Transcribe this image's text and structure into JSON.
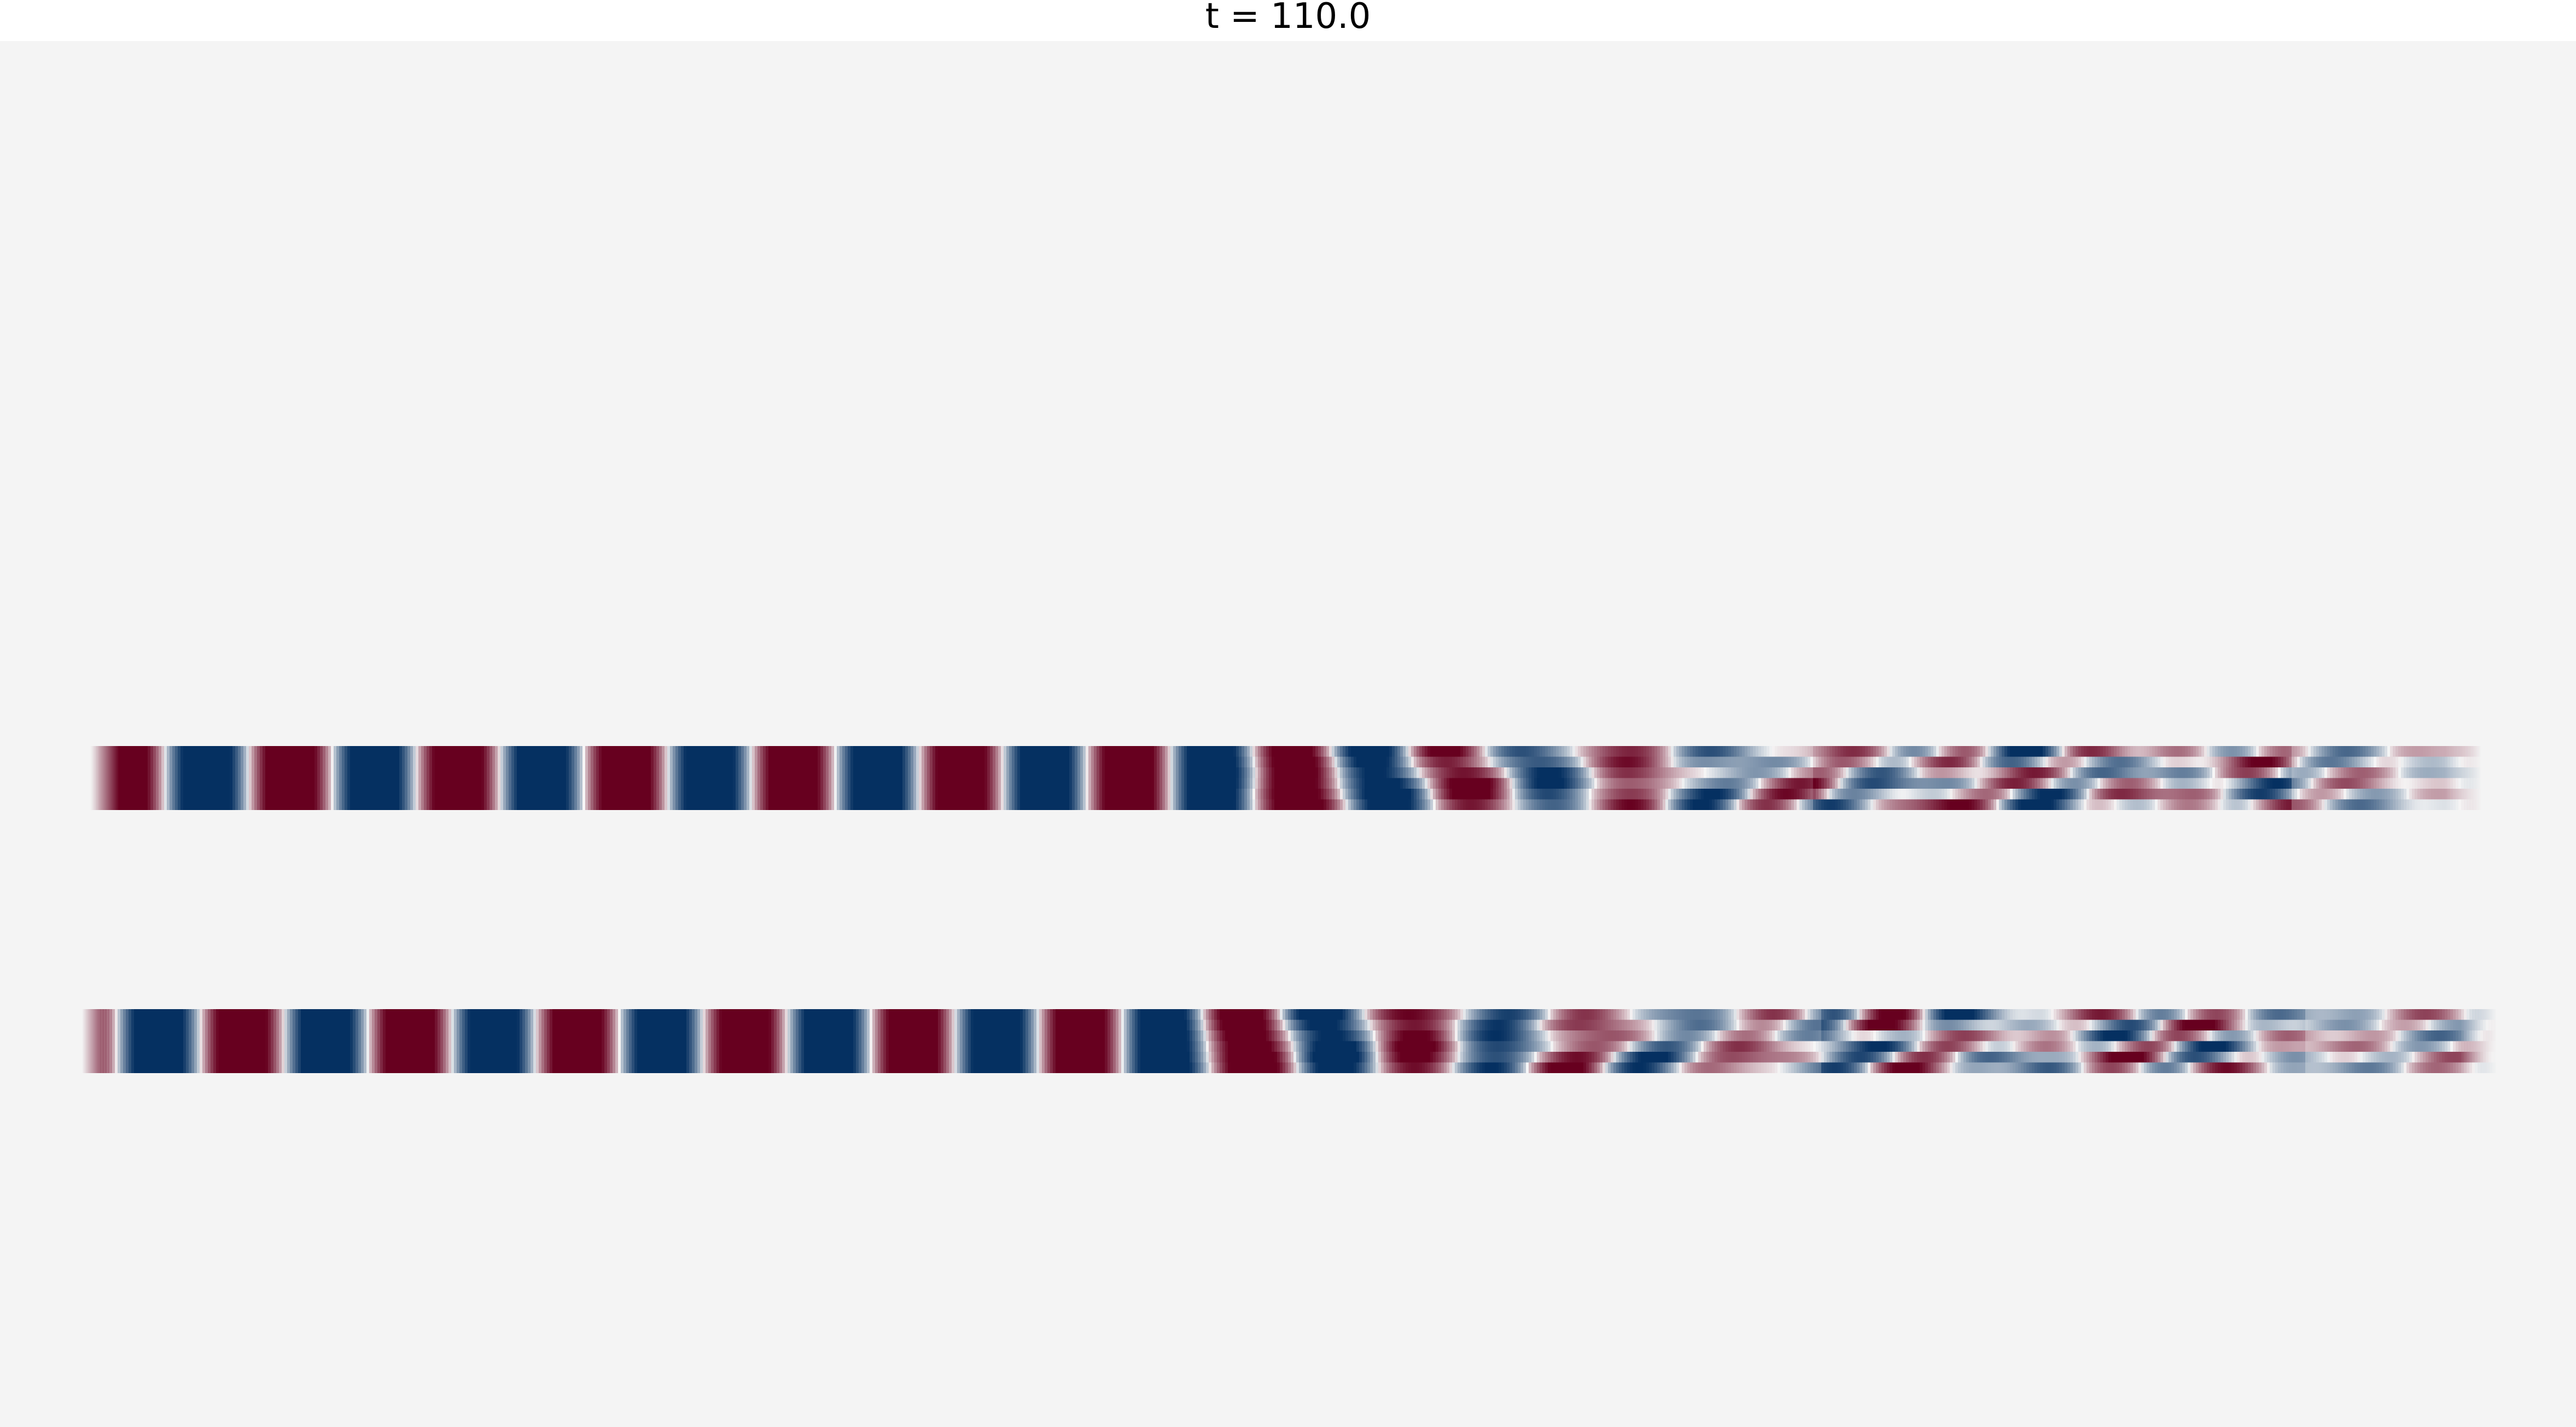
{
  "figure": {
    "title": "t = 110.0",
    "background_color": "#f4f4f4",
    "colormap": {
      "name": "RdBu_r",
      "negative_color": "#053061",
      "mid_color": "#f7f7f7",
      "positive_color": "#67001f"
    }
  },
  "panels": [
    {
      "name": "top-field-strip"
    },
    {
      "name": "bottom-field-strip"
    }
  ]
}
